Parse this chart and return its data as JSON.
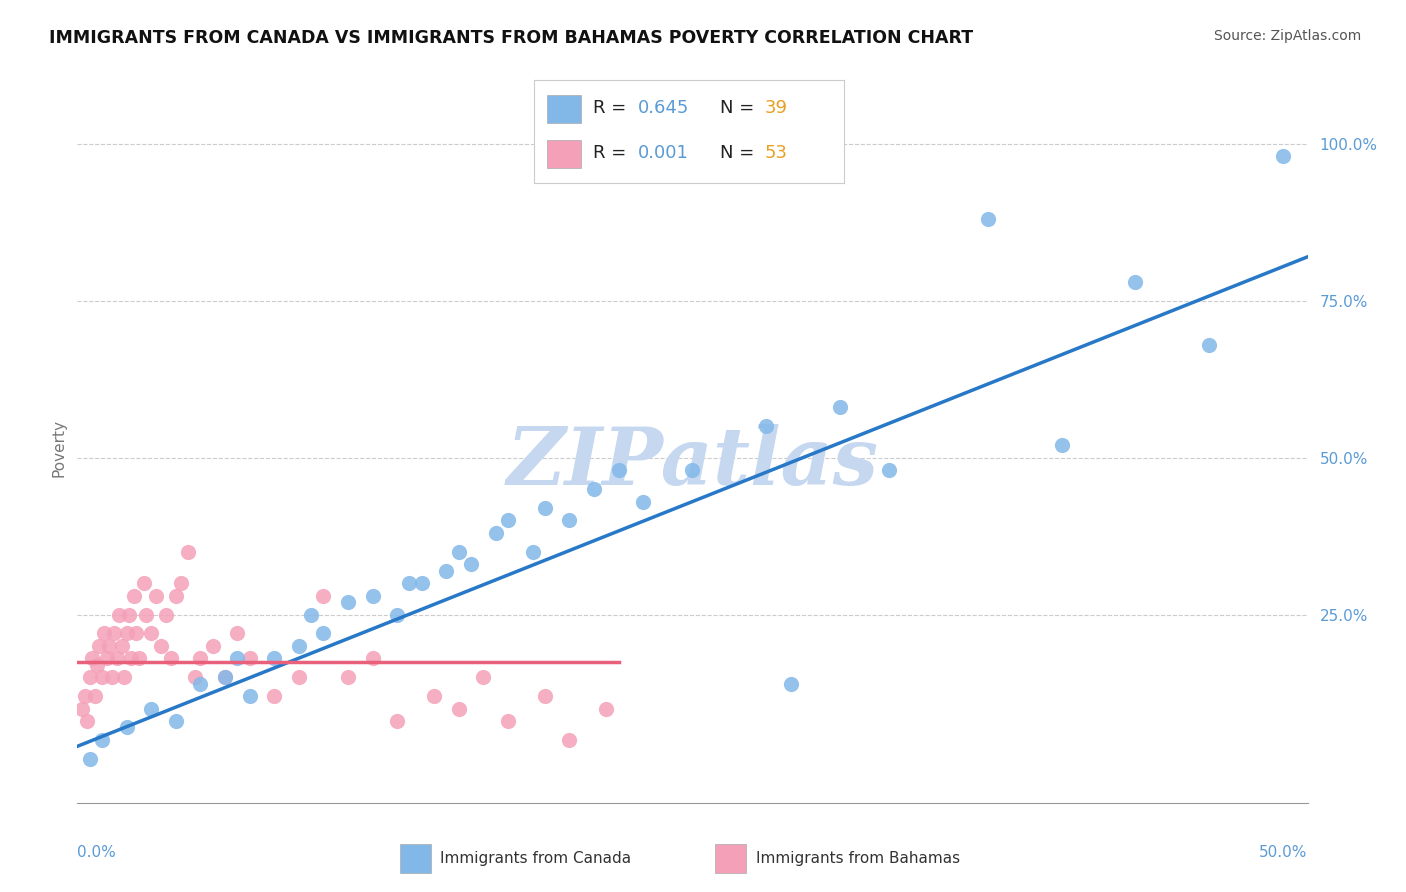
{
  "title": "IMMIGRANTS FROM CANADA VS IMMIGRANTS FROM BAHAMAS POVERTY CORRELATION CHART",
  "source_text": "Source: ZipAtlas.com",
  "ylabel": "Poverty",
  "xlim": [
    0.0,
    0.5
  ],
  "ylim": [
    -0.05,
    1.08
  ],
  "canada_R": 0.645,
  "canada_N": 39,
  "bahamas_R": 0.001,
  "bahamas_N": 53,
  "canada_color": "#82b8e8",
  "bahamas_color": "#f4a0b8",
  "canada_line_color": "#2878c8",
  "bahamas_line_color": "#e8607a",
  "watermark_color": "#c5d8f0",
  "background_color": "#ffffff",
  "grid_color": "#cccccc",
  "ytick_color": "#5b9bd5",
  "xtick_color": "#5b9bd5",
  "legend_number_color": "#5b9bd5",
  "legend_n_color": "#e8a020",
  "canada_x": [
    0.005,
    0.01,
    0.02,
    0.03,
    0.04,
    0.05,
    0.06,
    0.065,
    0.07,
    0.08,
    0.09,
    0.095,
    0.1,
    0.11,
    0.12,
    0.13,
    0.135,
    0.14,
    0.15,
    0.155,
    0.16,
    0.17,
    0.175,
    0.185,
    0.19,
    0.2,
    0.21,
    0.22,
    0.23,
    0.25,
    0.28,
    0.29,
    0.31,
    0.33,
    0.37,
    0.4,
    0.43,
    0.46,
    0.49
  ],
  "canada_y": [
    0.02,
    0.05,
    0.07,
    0.1,
    0.08,
    0.14,
    0.15,
    0.18,
    0.12,
    0.18,
    0.2,
    0.25,
    0.22,
    0.27,
    0.28,
    0.25,
    0.3,
    0.3,
    0.32,
    0.35,
    0.33,
    0.38,
    0.4,
    0.35,
    0.42,
    0.4,
    0.45,
    0.48,
    0.43,
    0.48,
    0.55,
    0.14,
    0.58,
    0.48,
    0.88,
    0.52,
    0.78,
    0.68,
    0.98
  ],
  "bahamas_x": [
    0.002,
    0.003,
    0.004,
    0.005,
    0.006,
    0.007,
    0.008,
    0.009,
    0.01,
    0.011,
    0.012,
    0.013,
    0.014,
    0.015,
    0.016,
    0.017,
    0.018,
    0.019,
    0.02,
    0.021,
    0.022,
    0.023,
    0.024,
    0.025,
    0.027,
    0.028,
    0.03,
    0.032,
    0.034,
    0.036,
    0.038,
    0.04,
    0.042,
    0.045,
    0.048,
    0.05,
    0.055,
    0.06,
    0.065,
    0.07,
    0.08,
    0.09,
    0.1,
    0.11,
    0.12,
    0.13,
    0.145,
    0.155,
    0.165,
    0.175,
    0.19,
    0.2,
    0.215
  ],
  "bahamas_y": [
    0.1,
    0.12,
    0.08,
    0.15,
    0.18,
    0.12,
    0.17,
    0.2,
    0.15,
    0.22,
    0.18,
    0.2,
    0.15,
    0.22,
    0.18,
    0.25,
    0.2,
    0.15,
    0.22,
    0.25,
    0.18,
    0.28,
    0.22,
    0.18,
    0.3,
    0.25,
    0.22,
    0.28,
    0.2,
    0.25,
    0.18,
    0.28,
    0.3,
    0.35,
    0.15,
    0.18,
    0.2,
    0.15,
    0.22,
    0.18,
    0.12,
    0.15,
    0.28,
    0.15,
    0.18,
    0.08,
    0.12,
    0.1,
    0.15,
    0.08,
    0.12,
    0.05,
    0.1
  ],
  "canada_trendline_x0": 0.0,
  "canada_trendline_y0": 0.04,
  "canada_trendline_x1": 0.5,
  "canada_trendline_y1": 0.82,
  "bahamas_trendline_x0": 0.0,
  "bahamas_trendline_y0": 0.175,
  "bahamas_trendline_x1": 0.22,
  "bahamas_trendline_y1": 0.175
}
